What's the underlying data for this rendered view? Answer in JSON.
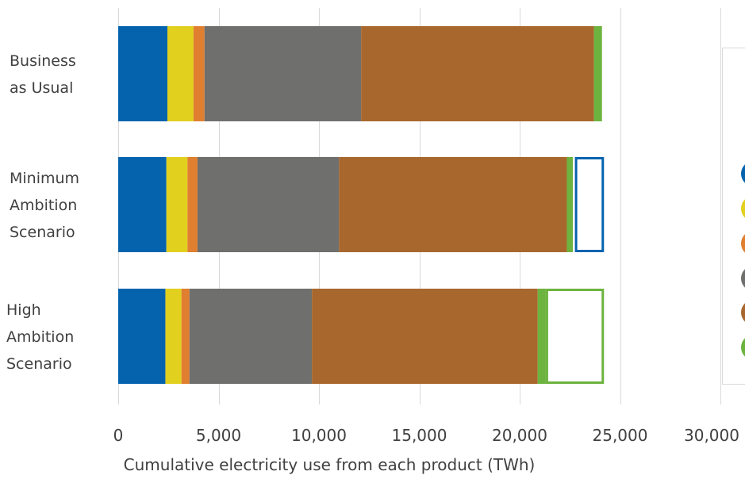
{
  "chart_data": {
    "type": "bar",
    "orientation": "horizontal",
    "stacked": true,
    "title": "",
    "xlabel": "Cumulative electricity use from each product (TWh)",
    "ylabel": "",
    "xlim": [
      0,
      30000
    ],
    "xticks": [
      0,
      5000,
      10000,
      15000,
      20000,
      25000,
      30000
    ],
    "xtick_labels": [
      "0",
      "5,000",
      "10,000",
      "15,000",
      "20,000",
      "25,000",
      "30,000"
    ],
    "grid": true,
    "legend_position": "right (cropped, labels not visible)",
    "categories": [
      {
        "lines": [
          "Business",
          "as Usual"
        ]
      },
      {
        "lines": [
          "Minimum",
          "Ambition",
          "Scenario"
        ]
      },
      {
        "lines": [
          "High",
          "Ambition",
          "Scenario"
        ]
      }
    ],
    "series": [
      {
        "color": "#0563AE",
        "values": [
          2450,
          2400,
          2350
        ]
      },
      {
        "color": "#E2D01F",
        "values": [
          1300,
          1050,
          800
        ]
      },
      {
        "color": "#E07F2F",
        "values": [
          550,
          500,
          400
        ]
      },
      {
        "color": "#6F6F6D",
        "values": [
          7800,
          7050,
          6100
        ]
      },
      {
        "color": "#A8672D",
        "values": [
          11600,
          11350,
          11250
        ]
      },
      {
        "color": "#6DB33F",
        "values": [
          400,
          300,
          400
        ]
      }
    ],
    "savings_outline": [
      {
        "category_index": 1,
        "start": 22750,
        "end": 24200,
        "color": "#0563AE"
      },
      {
        "category_index": 2,
        "start": 21300,
        "end": 24200,
        "color": "#6DB33F"
      }
    ]
  }
}
